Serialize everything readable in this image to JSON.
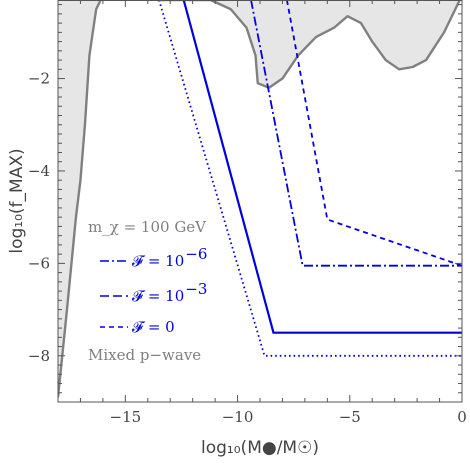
{
  "chart_data": {
    "type": "line",
    "title": "",
    "xlabel": "log₁₀(M●/M☉)",
    "ylabel": "log₁₀(f_MAX)",
    "xlim": [
      -18,
      0
    ],
    "ylim": [
      -9,
      -0.3
    ],
    "x_ticks": [
      {
        "value": -15,
        "label": "−15"
      },
      {
        "value": -10,
        "label": "−10"
      },
      {
        "value": -5,
        "label": "−5"
      },
      {
        "value": 0,
        "label": "0"
      }
    ],
    "y_ticks": [
      {
        "value": -2,
        "label": "−2"
      },
      {
        "value": -4,
        "label": "−4"
      },
      {
        "value": -6,
        "label": "−6"
      },
      {
        "value": -8,
        "label": "−8"
      }
    ],
    "grid": false,
    "colors": {
      "series": "#0000dd",
      "excluded_fill": "#e6e6e6",
      "excluded_edge": "#808080",
      "frame": "#555555",
      "legend_header": "#808080"
    },
    "excluded_regions": [
      {
        "name": "left-bound",
        "points": [
          [
            -18,
            -8.9
          ],
          [
            -17.6,
            -7.0
          ],
          [
            -17.2,
            -5.0
          ],
          [
            -17.0,
            -4.2
          ],
          [
            -16.8,
            -3.0
          ],
          [
            -16.6,
            -1.5
          ],
          [
            -16.3,
            -0.5
          ],
          [
            -16.1,
            -0.3
          ]
        ]
      },
      {
        "name": "right-bound",
        "points": [
          [
            -13.6,
            -0.3
          ],
          [
            -11.2,
            -0.3
          ],
          [
            -10.3,
            -0.5
          ],
          [
            -9.6,
            -0.9
          ],
          [
            -9.2,
            -1.5
          ],
          [
            -9.1,
            -2.1
          ],
          [
            -8.6,
            -2.2
          ],
          [
            -8.0,
            -2.0
          ],
          [
            -7.3,
            -1.5
          ],
          [
            -6.5,
            -1.1
          ],
          [
            -5.7,
            -0.9
          ],
          [
            -5.1,
            -0.65
          ],
          [
            -4.5,
            -0.8
          ],
          [
            -4.0,
            -1.2
          ],
          [
            -3.4,
            -1.6
          ],
          [
            -2.8,
            -1.8
          ],
          [
            -2.2,
            -1.75
          ],
          [
            -1.6,
            -1.6
          ],
          [
            -1.2,
            -1.3
          ],
          [
            -0.8,
            -1.0
          ],
          [
            -0.4,
            -0.6
          ],
          [
            -0.1,
            -0.3
          ]
        ]
      }
    ],
    "legend": {
      "header": "m_χ = 100 GeV",
      "footer": "Mixed p−wave",
      "placement": "bottom-left",
      "items": [
        {
          "label": "𝓕 = 10",
          "exponent": "−6",
          "dash": "dashdot"
        },
        {
          "label": "𝓕 = 10",
          "exponent": "−3",
          "dash": "longdash"
        },
        {
          "label": "𝓕 = 0",
          "exponent": "",
          "dash": "dashed"
        }
      ]
    },
    "series": [
      {
        "style": "solid",
        "x": [
          -12.4,
          -8.4,
          0
        ],
        "y": [
          -0.3,
          -7.5,
          -7.5
        ]
      },
      {
        "style": "dotted",
        "x": [
          -13.5,
          -8.8,
          0
        ],
        "y": [
          -0.3,
          -8.0,
          -8.0
        ]
      },
      {
        "style": "dashdot",
        "x": [
          -9.4,
          -7.1,
          0
        ],
        "y": [
          -0.3,
          -6.05,
          -6.05
        ]
      },
      {
        "style": "dashed",
        "x": [
          -7.8,
          -6.0,
          0
        ],
        "y": [
          -0.3,
          -5.05,
          -6.05
        ]
      }
    ]
  }
}
